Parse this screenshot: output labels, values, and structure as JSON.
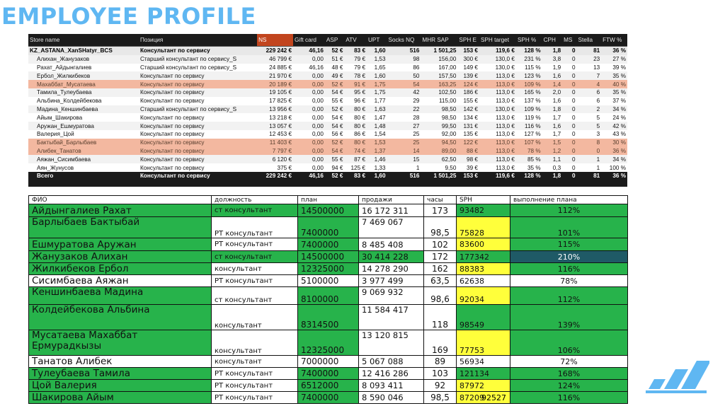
{
  "title": "EMPLOYEE PROFILE",
  "top_table": {
    "headers": [
      "Store name",
      "Позиция",
      "NS",
      "Gift card",
      "ASP",
      "ATV",
      "UPT",
      "Socks NQ",
      "MHR SAP",
      "SPH E",
      "SPH target",
      "SPH %",
      "CPH",
      "MS",
      "Stella",
      "FTW %"
    ],
    "group_row": [
      "KZ_ASTANA_XanSHatyr_BCS",
      "Консультант по сервису",
      "229 242 €",
      "46,16",
      "52 €",
      "83 €",
      "1,60",
      "516",
      "1 501,25",
      "153 €",
      "119,6 €",
      "128 %",
      "1,8",
      "0",
      "81",
      "36 %"
    ],
    "rows": [
      [
        "Алихан_Жанузаков",
        "Старший консультант по сервису_S",
        "46 799 €",
        "0,00",
        "51 €",
        "79 €",
        "1,53",
        "98",
        "156,00",
        "300 €",
        "130,0 €",
        "231 %",
        "3,8",
        "0",
        "23",
        "27 %"
      ],
      [
        "Рахат_Айдынгалиев",
        "Старший консультант по сервису_S",
        "24 885 €",
        "46,16",
        "48 €",
        "79 €",
        "1,65",
        "86",
        "167,00",
        "149 €",
        "130,0 €",
        "115 %",
        "1,9",
        "0",
        "13",
        "39 %"
      ],
      [
        "Ербол_Жилкибеков",
        "Консультант по сервису",
        "21 970 €",
        "0,00",
        "49 €",
        "78 €",
        "1,60",
        "50",
        "157,50",
        "139 €",
        "113,0 €",
        "123 %",
        "1,6",
        "0",
        "7",
        "35 %"
      ],
      [
        "Махаббат_Мусатаева",
        "Консультант по сервису",
        "20 189 €",
        "0,00",
        "52 €",
        "91 €",
        "1,75",
        "54",
        "163,25",
        "124 €",
        "113,0 €",
        "109 %",
        "1,4",
        "0",
        "4",
        "40 %"
      ],
      [
        "Тамила_Тулеубаева",
        "Консультант по сервису",
        "19 105 €",
        "0,00",
        "54 €",
        "95 €",
        "1,75",
        "42",
        "102,50",
        "186 €",
        "113,0 €",
        "165 %",
        "2,0",
        "0",
        "6",
        "35 %"
      ],
      [
        "Альбина_Колдейбекова",
        "Консультант по сервису",
        "17 825 €",
        "0,00",
        "55 €",
        "96 €",
        "1,77",
        "29",
        "115,00",
        "155 €",
        "113,0 €",
        "137 %",
        "1,6",
        "0",
        "6",
        "37 %"
      ],
      [
        "Мадина_Кеншинбаева",
        "Старший консультант по сервису_S",
        "13 956 €",
        "0,00",
        "52 €",
        "80 €",
        "1,63",
        "22",
        "98,50",
        "142 €",
        "130,0 €",
        "109 %",
        "1,8",
        "0",
        "2",
        "34 %"
      ],
      [
        "Айым_Шакирова",
        "Консультант по сервису",
        "13 218 €",
        "0,00",
        "54 €",
        "80 €",
        "1,47",
        "28",
        "98,50",
        "134 €",
        "113,0 €",
        "119 %",
        "1,7",
        "0",
        "5",
        "24 %"
      ],
      [
        "Аружан_Ешмуратова",
        "Консультант по сервису",
        "13 057 €",
        "0,00",
        "54 €",
        "80 €",
        "1,48",
        "27",
        "99,50",
        "131 €",
        "113,0 €",
        "116 %",
        "1,6",
        "0",
        "5",
        "42 %"
      ],
      [
        "Валерия_Цой",
        "Консультант по сервису",
        "12 453 €",
        "0,00",
        "56 €",
        "86 €",
        "1,54",
        "25",
        "92,00",
        "135 €",
        "113,0 €",
        "127 %",
        "1,7",
        "0",
        "3",
        "43 %"
      ],
      [
        "Бактыбай_Барлыбаев",
        "Консультант по сервису",
        "11 403 €",
        "0,00",
        "52 €",
        "80 €",
        "1,53",
        "25",
        "94,50",
        "122 €",
        "113,0 €",
        "107 %",
        "1,5",
        "0",
        "8",
        "30 %"
      ],
      [
        "Алибек_Танатов",
        "Консультант по сервису",
        "7 797 €",
        "0,00",
        "54 €",
        "74 €",
        "1,37",
        "14",
        "89,00",
        "88 €",
        "113,0 €",
        "78 %",
        "1,2",
        "0",
        "0",
        "36 %"
      ],
      [
        "Аяжан_Сисимбаева",
        "Консультант по сервису",
        "6 120 €",
        "0,00",
        "55 €",
        "87 €",
        "1,46",
        "15",
        "62,50",
        "98 €",
        "113,0 €",
        "85 %",
        "1,1",
        "0",
        "1",
        "34 %"
      ],
      [
        "Аян_Жунусов",
        "Консультант по сервису",
        "375 €",
        "0,00",
        "94 €",
        "125 €",
        "1,33",
        "1",
        "9,50",
        "39 €",
        "113,0 €",
        "35 %",
        "0,3",
        "0",
        "1",
        "100 %"
      ]
    ],
    "total_row": [
      "Всего",
      "Консультант по сервису",
      "229 242 €",
      "46,16",
      "52 €",
      "83 €",
      "1,60",
      "516",
      "1 501,25",
      "153 €",
      "119,6 €",
      "128 %",
      "1,8",
      "0",
      "81",
      "36 %"
    ]
  },
  "bottom_table": {
    "headers": [
      "ФИО",
      "должность",
      "план",
      "продажи",
      "часы",
      "SPH",
      "выполнение плана"
    ],
    "rows": [
      {
        "fio": "Айдынгалиев Рахат",
        "pos": "ст консультант",
        "plan": "14500000",
        "sales": "16 172 311",
        "hrs": "173",
        "sph": "93482",
        "pct": "112%",
        "c": [
          "g",
          "g",
          "g",
          "w",
          "w",
          "g",
          "g"
        ],
        "h": 18
      },
      {
        "fio": "Барлыбаев Бактыбай",
        "pos": "РТ консультант",
        "plan": "7400000",
        "sales": "7 469 067",
        "hrs": "98,5",
        "sph": "75828",
        "pct": "101%",
        "c": [
          "g",
          "w",
          "g",
          "w",
          "w",
          "y",
          "g"
        ],
        "h": 30
      },
      {
        "fio": "Ешмуратова Аружан",
        "pos": "РТ консультант",
        "plan": "7400000",
        "sales": "8 485 408",
        "hrs": "102",
        "sph": "83600",
        "pct": "115%",
        "c": [
          "g",
          "w",
          "g",
          "w",
          "w",
          "y",
          "g"
        ],
        "h": 18
      },
      {
        "fio": "Жанузаков Алихан",
        "pos": "ст консультант",
        "plan": "14500000",
        "sales": "30 414 228",
        "hrs": "172",
        "sph": "177342",
        "pct": "210%",
        "c": [
          "g",
          "g",
          "g",
          "g",
          "w",
          "g",
          "dk"
        ],
        "h": 17
      },
      {
        "fio": "Жилкибеков Ербол",
        "pos": "консультант",
        "plan": "12325000",
        "sales": "14 278 290",
        "hrs": "162",
        "sph": "88383",
        "pct": "116%",
        "c": [
          "g",
          "w",
          "g",
          "w",
          "w",
          "y",
          "g"
        ],
        "h": 17
      },
      {
        "fio": "Сисимбаева Аяжан",
        "pos": "РТ консультант",
        "plan": "5100000",
        "sales": "3 977 499",
        "hrs": "63,5",
        "sph": "62638",
        "pct": "78%",
        "c": [
          "w",
          "w",
          "w",
          "w",
          "w",
          "w",
          "w"
        ],
        "h": 17
      },
      {
        "fio": "Кеншинбаева Мадина",
        "pos": "ст консультант",
        "plan": "8100000",
        "sales": "9 069 932",
        "hrs": "98,6",
        "sph": "92034",
        "pct": "112%",
        "c": [
          "g",
          "w",
          "g",
          "w",
          "w",
          "y",
          "g"
        ],
        "h": 25
      },
      {
        "fio": "Колдейбекова Альбина",
        "pos": "консультант",
        "plan": "8314500",
        "sales": "11 584 417",
        "hrs": "118",
        "sph": "98549",
        "pct": "139%",
        "c": [
          "g",
          "w",
          "g",
          "w",
          "w",
          "g",
          "g"
        ],
        "h": 36
      },
      {
        "fio": "Мусатаева Махаббат Ермурадкызы",
        "pos": "консультант",
        "plan": "12325000",
        "sales": "13 120 815",
        "hrs": "169",
        "sph": "77753",
        "pct": "106%",
        "c": [
          "g",
          "w",
          "g",
          "w",
          "w",
          "y",
          "g"
        ],
        "h": 36
      },
      {
        "fio": "Танатов Алибек",
        "pos": "консультант",
        "plan": "7000000",
        "sales": "5 067 088",
        "hrs": "89",
        "sph": "56934",
        "pct": "72%",
        "c": [
          "w",
          "w",
          "w",
          "w",
          "w",
          "w",
          "w"
        ],
        "h": 17
      },
      {
        "fio": "Тулеубаева Тамила",
        "pos": "РТ консультант",
        "plan": "7400000",
        "sales": "12 416 286",
        "hrs": "103",
        "sph": "121134",
        "pct": "168%",
        "c": [
          "g",
          "w",
          "g",
          "w",
          "w",
          "g",
          "g"
        ],
        "h": 17
      },
      {
        "fio": "Цой Валерия",
        "pos": "РТ консультант",
        "plan": "6512000",
        "sales": "8 093 411",
        "hrs": "92",
        "sph": "87972",
        "pct": "124%",
        "c": [
          "g",
          "w",
          "g",
          "w",
          "w",
          "y",
          "g"
        ],
        "h": 17
      },
      {
        "fio": "Шакирова Айым",
        "pos": "РТ консультант",
        "plan": "7400000",
        "sales": "8 590 046",
        "hrs": "98,5",
        "sph": "87209",
        "pct": "116%",
        "c": [
          "g",
          "w",
          "g",
          "w",
          "w",
          "y",
          "g"
        ],
        "h": 17
      }
    ],
    "footer_value": "92527"
  },
  "colors": {
    "title": "#5fb7f2",
    "header_bg": "#1b1b1b",
    "highlight": "#f3b8a0",
    "green": "#27b34b",
    "yellow": "#ffff3b",
    "dark_teal": "#1f5a66"
  },
  "logo_icon": "performance-logo-icon"
}
